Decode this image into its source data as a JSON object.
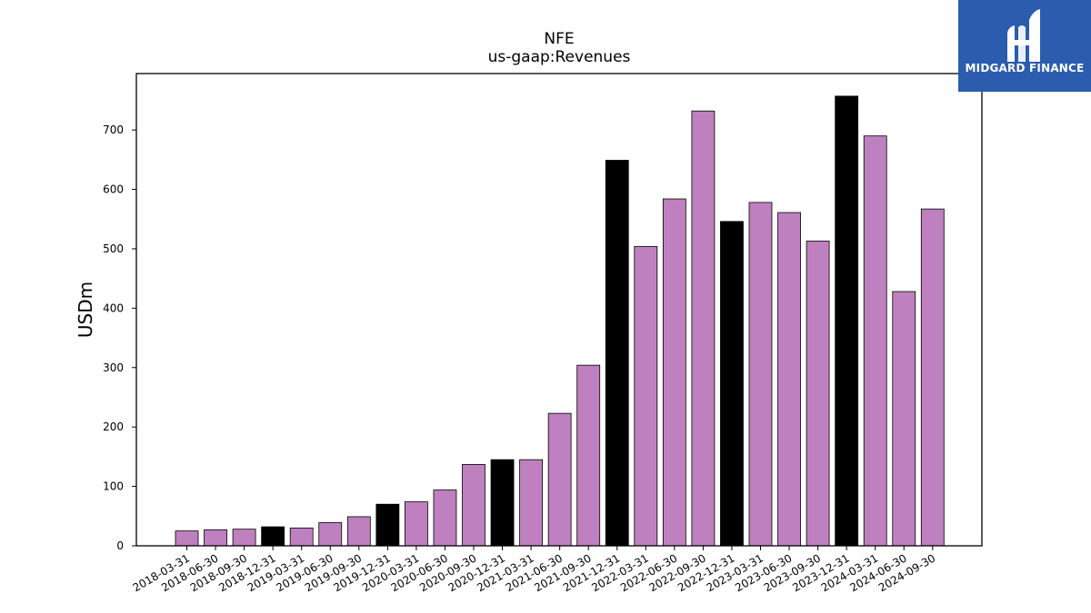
{
  "chart_data": {
    "type": "bar",
    "title": "NFE",
    "subtitle": "us-gaap:Revenues",
    "xlabel": "",
    "ylabel": "USDm",
    "ylim": [
      0,
      795
    ],
    "yticks": [
      0,
      100,
      200,
      300,
      400,
      500,
      600,
      700
    ],
    "categories": [
      "2018-03-31",
      "2018-06-30",
      "2018-09-30",
      "2018-12-31",
      "2019-03-31",
      "2019-06-30",
      "2019-09-30",
      "2019-12-31",
      "2020-03-31",
      "2020-06-30",
      "2020-09-30",
      "2020-12-31",
      "2021-03-31",
      "2021-06-30",
      "2021-09-30",
      "2021-12-31",
      "2022-03-31",
      "2022-06-30",
      "2022-09-30",
      "2022-12-31",
      "2023-03-31",
      "2023-06-30",
      "2023-09-30",
      "2023-12-31",
      "2024-03-31",
      "2024-06-30",
      "2024-09-30"
    ],
    "values": [
      25,
      27,
      28,
      32,
      30,
      39,
      49,
      70,
      74,
      94,
      137,
      145,
      145,
      223,
      304,
      649,
      504,
      584,
      732,
      546,
      578,
      561,
      513,
      757,
      690,
      428,
      567
    ],
    "bar_colors": [
      "#bf80bf",
      "#bf80bf",
      "#bf80bf",
      "#000000",
      "#bf80bf",
      "#bf80bf",
      "#bf80bf",
      "#000000",
      "#bf80bf",
      "#bf80bf",
      "#bf80bf",
      "#000000",
      "#bf80bf",
      "#bf80bf",
      "#bf80bf",
      "#000000",
      "#bf80bf",
      "#bf80bf",
      "#bf80bf",
      "#000000",
      "#bf80bf",
      "#bf80bf",
      "#bf80bf",
      "#000000",
      "#bf80bf",
      "#bf80bf",
      "#bf80bf"
    ],
    "grid": false,
    "legend": "none"
  },
  "logo": {
    "text": "MIDGARD FINANCE",
    "background": "#2b5cae",
    "icon": "midgard-logo-icon"
  }
}
